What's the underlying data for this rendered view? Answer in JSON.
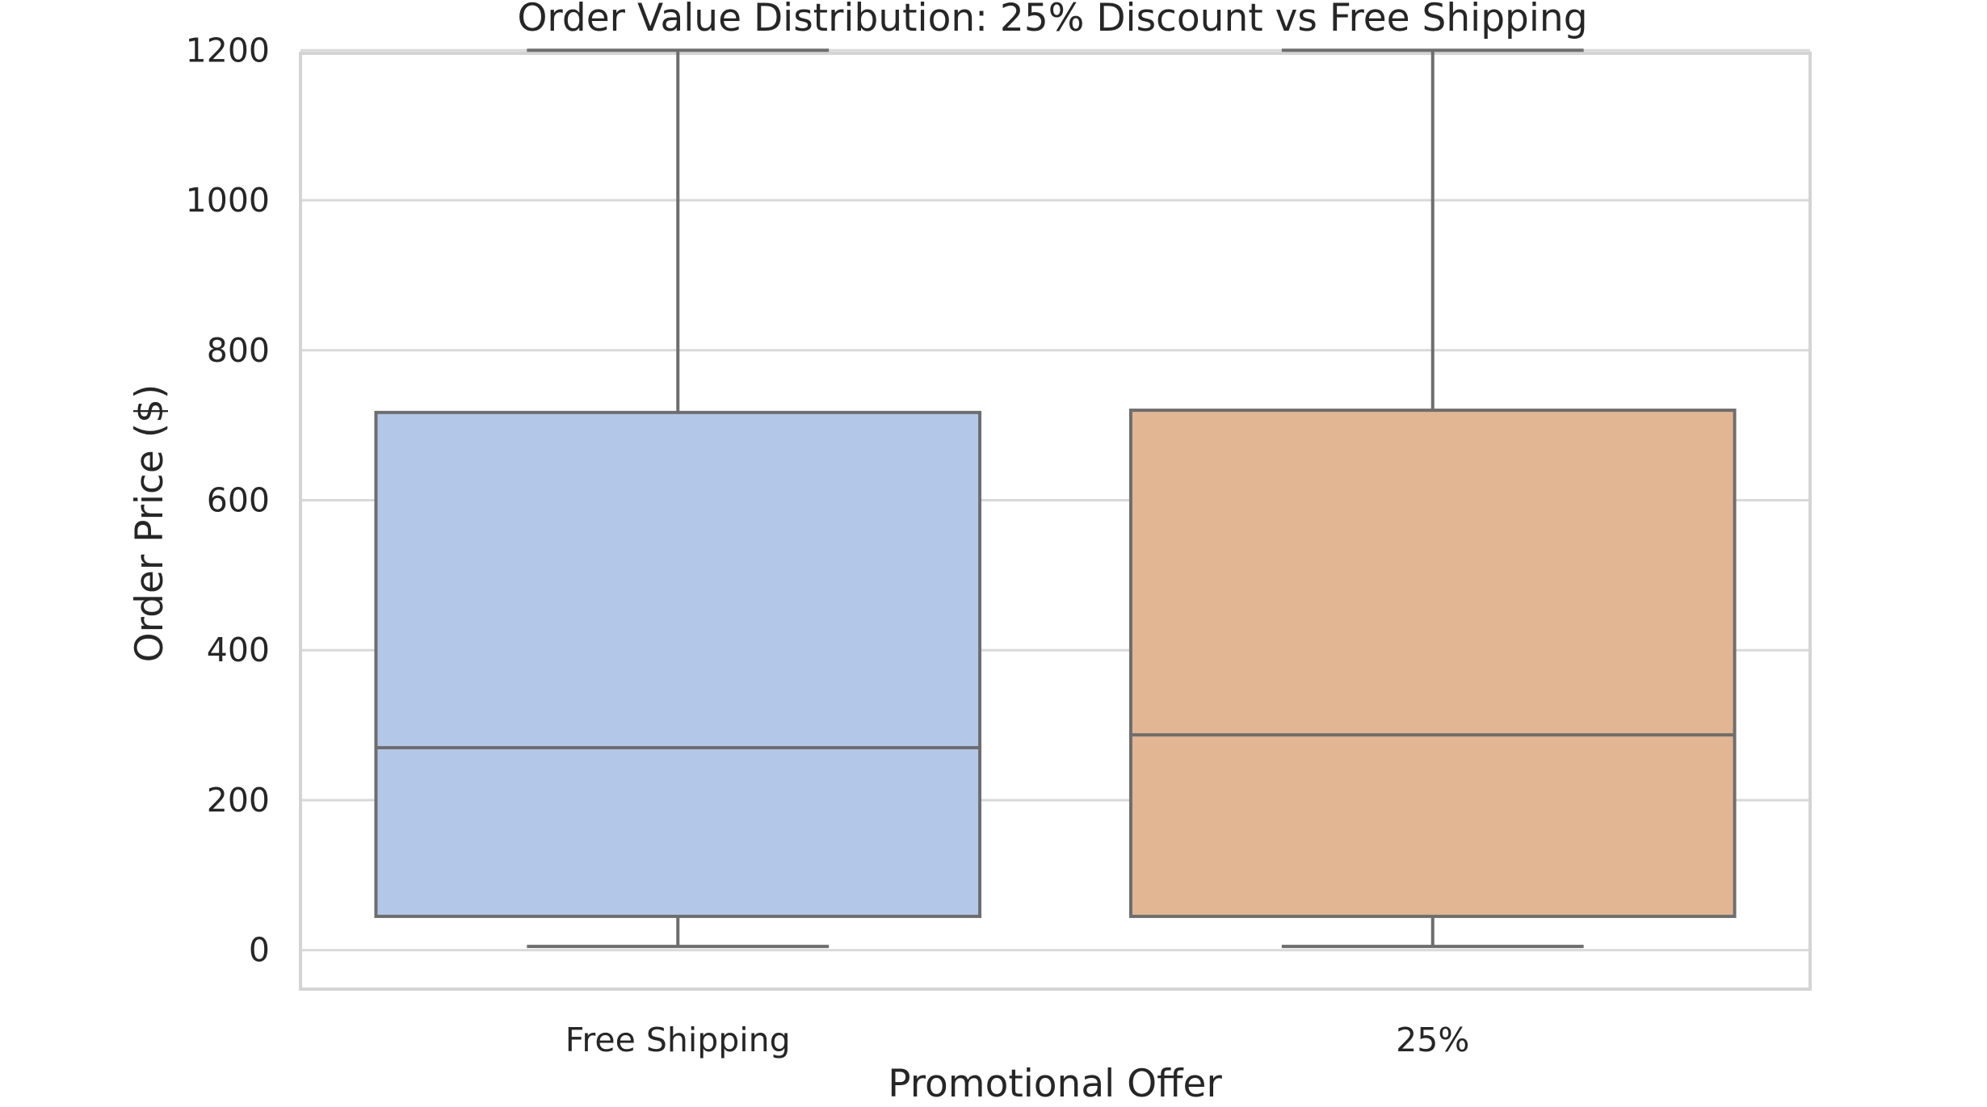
{
  "chart_data": {
    "type": "box",
    "title": "Order Value Distribution: 25% Discount vs Free Shipping",
    "xlabel": "Promotional Offer",
    "ylabel": "Order Price ($)",
    "ylim": [
      -52,
      1196
    ],
    "yticks": [
      "0",
      "200",
      "400",
      "600",
      "800",
      "1000",
      "1200"
    ],
    "grid": true,
    "colors": {
      "box_edge": "#6e6e6e",
      "grid": "#d9d9d9",
      "frame": "#d4d4d4",
      "text": "#262626"
    },
    "boxes": [
      {
        "category": "Free Shipping",
        "whisker_low": 5,
        "q1": 45,
        "median": 270,
        "q3": 717,
        "whisker_high": 1200,
        "color": "#b3c8e8"
      },
      {
        "category": "25%",
        "whisker_low": 5,
        "q1": 45,
        "median": 287,
        "q3": 720,
        "whisker_high": 1200,
        "color": "#e2b692"
      }
    ]
  }
}
